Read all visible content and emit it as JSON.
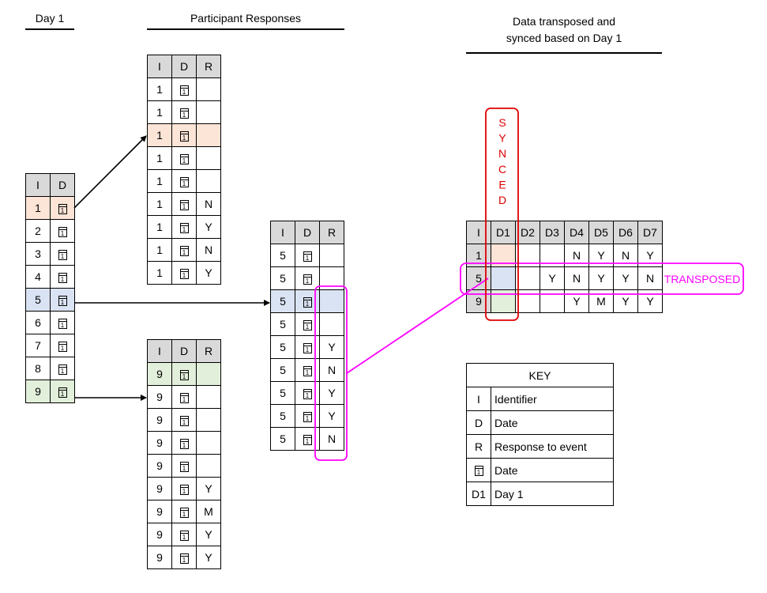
{
  "headings": {
    "day1": "Day 1",
    "participant": "Participant Responses",
    "transposed_line1": "Data transposed and",
    "transposed_line2": "synced based on Day 1"
  },
  "calendar_glyph": "1",
  "day1_table": {
    "headers": [
      "I",
      "D"
    ],
    "rows": [
      "1",
      "2",
      "3",
      "4",
      "5",
      "6",
      "7",
      "8",
      "9"
    ]
  },
  "p1_table": {
    "headers": [
      "I",
      "D",
      "R"
    ],
    "rows": [
      {
        "i": "1",
        "r": ""
      },
      {
        "i": "1",
        "r": ""
      },
      {
        "i": "1",
        "r": ""
      },
      {
        "i": "1",
        "r": ""
      },
      {
        "i": "1",
        "r": ""
      },
      {
        "i": "1",
        "r": "N"
      },
      {
        "i": "1",
        "r": "Y"
      },
      {
        "i": "1",
        "r": "N"
      },
      {
        "i": "1",
        "r": "Y"
      }
    ]
  },
  "p5_table": {
    "headers": [
      "I",
      "D",
      "R"
    ],
    "rows": [
      {
        "i": "5",
        "r": ""
      },
      {
        "i": "5",
        "r": ""
      },
      {
        "i": "5",
        "r": ""
      },
      {
        "i": "5",
        "r": ""
      },
      {
        "i": "5",
        "r": "Y"
      },
      {
        "i": "5",
        "r": "N"
      },
      {
        "i": "5",
        "r": "Y"
      },
      {
        "i": "5",
        "r": "Y"
      },
      {
        "i": "5",
        "r": "N"
      }
    ]
  },
  "p9_table": {
    "headers": [
      "I",
      "D",
      "R"
    ],
    "rows": [
      {
        "i": "9",
        "r": ""
      },
      {
        "i": "9",
        "r": ""
      },
      {
        "i": "9",
        "r": ""
      },
      {
        "i": "9",
        "r": ""
      },
      {
        "i": "9",
        "r": ""
      },
      {
        "i": "9",
        "r": "Y"
      },
      {
        "i": "9",
        "r": "M"
      },
      {
        "i": "9",
        "r": "Y"
      },
      {
        "i": "9",
        "r": "Y"
      }
    ]
  },
  "transposed_table": {
    "headers": [
      "I",
      "D1",
      "D2",
      "D3",
      "D4",
      "D5",
      "D6",
      "D7"
    ],
    "rows": [
      [
        "1",
        "",
        "",
        "",
        "N",
        "Y",
        "N",
        "Y"
      ],
      [
        "5",
        "",
        "",
        "Y",
        "N",
        "Y",
        "Y",
        "N"
      ],
      [
        "9",
        "",
        "",
        "",
        "Y",
        "M",
        "Y",
        "Y"
      ]
    ]
  },
  "labels": {
    "synced_letters": [
      "S",
      "Y",
      "N",
      "C",
      "E",
      "D"
    ],
    "transposed": "TRANSPOSED"
  },
  "key": {
    "title": "KEY",
    "rows": [
      {
        "sym": "I",
        "desc": "Identifier"
      },
      {
        "sym": "D",
        "desc": "Date"
      },
      {
        "sym": "R",
        "desc": "Response to event"
      },
      {
        "sym": "",
        "desc": "Date"
      },
      {
        "sym": "D1",
        "desc": "Day 1"
      }
    ]
  },
  "colors": {
    "orange": "#fce4d6",
    "blue": "#dae3f3",
    "green": "#e2efda",
    "synced": "#e00000",
    "transposed": "#ff00ff"
  }
}
